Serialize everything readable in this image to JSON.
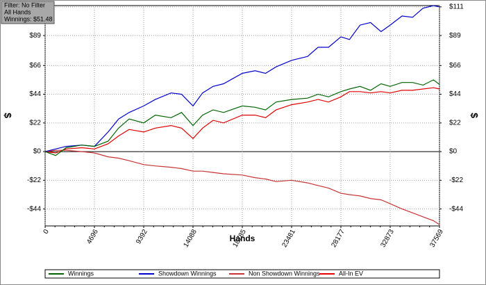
{
  "chart_data": {
    "type": "line",
    "info": [
      "Filter: No Filter",
      "All Hands",
      "Winnings: $51.48"
    ],
    "xlabel": "Hands",
    "ylabel": "$",
    "x": [
      0,
      1000,
      2000,
      3500,
      4696,
      6000,
      7000,
      8000,
      9392,
      10500,
      12000,
      13000,
      14088,
      15000,
      16000,
      17000,
      18785,
      20000,
      21000,
      22000,
      23481,
      25000,
      26000,
      27000,
      28177,
      29000,
      30000,
      31000,
      32000,
      32873,
      34000,
      35000,
      36000,
      37000,
      37569
    ],
    "xlim": [
      0,
      37569
    ],
    "xticks": [
      0,
      4696,
      9392,
      14088,
      18785,
      23481,
      28177,
      32873,
      37569
    ],
    "ylim": [
      -57,
      112
    ],
    "yticks": [
      {
        "value": -44,
        "label": "-$44"
      },
      {
        "value": -22,
        "label": "-$22"
      },
      {
        "value": 0,
        "label": "$0"
      },
      {
        "value": 22,
        "label": "$22"
      },
      {
        "value": 44,
        "label": "$44"
      },
      {
        "value": 66,
        "label": "$66"
      },
      {
        "value": 89,
        "label": "$89"
      },
      {
        "value": 111,
        "label": "$111"
      }
    ],
    "grid": true,
    "series": [
      {
        "name": "Winnings",
        "color": "#006400",
        "values": [
          0,
          -3,
          3,
          5,
          4,
          8,
          18,
          25,
          22,
          28,
          26,
          30,
          20,
          28,
          32,
          30,
          35,
          34,
          32,
          38,
          40,
          41,
          44,
          42,
          46,
          48,
          50,
          47,
          52,
          50,
          53,
          53,
          51,
          55,
          51.48
        ]
      },
      {
        "name": "Showdown Winnings",
        "color": "#0000cc",
        "values": [
          0,
          2,
          4,
          5,
          4,
          15,
          25,
          30,
          35,
          40,
          45,
          44,
          35,
          45,
          50,
          52,
          60,
          62,
          60,
          65,
          70,
          73,
          80,
          80,
          88,
          86,
          97,
          99,
          92,
          97,
          104,
          103,
          110,
          112,
          111
        ]
      },
      {
        "name": "Non Showdown Winnings",
        "color": "#c83232",
        "values": [
          0,
          1,
          1,
          0,
          -1,
          -4,
          -5,
          -7,
          -10,
          -11,
          -12,
          -13,
          -15,
          -15,
          -16,
          -17,
          -18,
          -20,
          -21,
          -23,
          -22,
          -24,
          -26,
          -28,
          -32,
          -33,
          -34,
          -36,
          -37,
          -40,
          -44,
          -47,
          -50,
          -53,
          -56
        ]
      },
      {
        "name": "All-In EV",
        "color": "#e00000",
        "values": [
          0,
          -1,
          2,
          3,
          2,
          6,
          12,
          17,
          15,
          18,
          20,
          18,
          10,
          18,
          24,
          22,
          28,
          28,
          26,
          32,
          36,
          38,
          40,
          38,
          42,
          46,
          46,
          45,
          46,
          45,
          47,
          47,
          48,
          49,
          48
        ]
      }
    ]
  }
}
